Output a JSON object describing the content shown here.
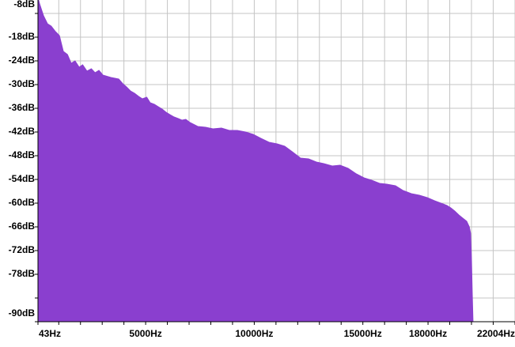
{
  "chart_data": {
    "type": "area",
    "color": "#8a3fcf",
    "grid": true,
    "xlim": [
      43,
      22004
    ],
    "ylim": [
      -90,
      -8
    ],
    "xticks": [
      {
        "value": 43,
        "label": "43Hz"
      },
      {
        "value": 1000,
        "label": null
      },
      {
        "value": 2000,
        "label": null
      },
      {
        "value": 3000,
        "label": null
      },
      {
        "value": 4000,
        "label": null
      },
      {
        "value": 5000,
        "label": "5000Hz"
      },
      {
        "value": 6000,
        "label": null
      },
      {
        "value": 7000,
        "label": null
      },
      {
        "value": 8000,
        "label": null
      },
      {
        "value": 9000,
        "label": null
      },
      {
        "value": 10000,
        "label": "10000Hz"
      },
      {
        "value": 11000,
        "label": null
      },
      {
        "value": 12000,
        "label": null
      },
      {
        "value": 13000,
        "label": null
      },
      {
        "value": 14000,
        "label": null
      },
      {
        "value": 15000,
        "label": "15000Hz"
      },
      {
        "value": 16000,
        "label": null
      },
      {
        "value": 17000,
        "label": null
      },
      {
        "value": 18000,
        "label": "18000Hz"
      },
      {
        "value": 19000,
        "label": null
      },
      {
        "value": 20000,
        "label": null
      },
      {
        "value": 21000,
        "label": null
      },
      {
        "value": 22004,
        "label": "22004Hz"
      }
    ],
    "yticks": [
      {
        "value": -8,
        "label": "-8dB"
      },
      {
        "value": -12,
        "label": null
      },
      {
        "value": -18,
        "label": "-18dB"
      },
      {
        "value": -24,
        "label": "-24dB"
      },
      {
        "value": -30,
        "label": "-30dB"
      },
      {
        "value": -36,
        "label": "-36dB"
      },
      {
        "value": -42,
        "label": "-42dB"
      },
      {
        "value": -48,
        "label": "-48dB"
      },
      {
        "value": -54,
        "label": "-54dB"
      },
      {
        "value": -60,
        "label": "-60dB"
      },
      {
        "value": -66,
        "label": "-66dB"
      },
      {
        "value": -72,
        "label": "-72dB"
      },
      {
        "value": -78,
        "label": "-78dB"
      },
      {
        "value": -84,
        "label": null
      },
      {
        "value": -90,
        "label": "-90dB"
      }
    ],
    "x": [
      43,
      120,
      300,
      480,
      650,
      850,
      1030,
      1210,
      1400,
      1570,
      1750,
      1940,
      2100,
      2300,
      2500,
      2670,
      2850,
      3030,
      3400,
      3760,
      3950,
      4120,
      4300,
      4490,
      4680,
      4850,
      5050,
      5210,
      5400,
      5580,
      5760,
      5940,
      6120,
      6310,
      6500,
      6670,
      6850,
      7040,
      7400,
      7760,
      8100,
      8490,
      8850,
      9220,
      9600,
      9950,
      10300,
      10680,
      11050,
      11400,
      11750,
      12130,
      12500,
      12860,
      13200,
      13590,
      13950,
      14320,
      14700,
      15050,
      15400,
      15770,
      16100,
      16500,
      16850,
      17230,
      17600,
      17960,
      18300,
      18690,
      18870,
      19050,
      19230,
      19420,
      19600,
      19780,
      19900,
      19960,
      20000,
      20035,
      20071
    ],
    "values": [
      -8,
      -9.6,
      -12.6,
      -14.6,
      -15.2,
      -16.6,
      -17.6,
      -21.6,
      -22.4,
      -24.6,
      -24,
      -25.6,
      -25,
      -26.6,
      -26,
      -27,
      -26.4,
      -27.6,
      -28.2,
      -28.6,
      -29.8,
      -30.6,
      -31.6,
      -32.2,
      -33,
      -33.6,
      -33.2,
      -34.6,
      -35,
      -35.6,
      -36.2,
      -37,
      -37.6,
      -38.2,
      -38.6,
      -39,
      -38.8,
      -39.6,
      -40.6,
      -40.8,
      -41.2,
      -41,
      -41.6,
      -41.6,
      -42,
      -42.6,
      -43.6,
      -44.6,
      -45,
      -45.6,
      -47,
      -48.6,
      -48.8,
      -49.6,
      -50,
      -50.6,
      -50.4,
      -51.2,
      -52.6,
      -53.6,
      -54.2,
      -55,
      -55.2,
      -55.6,
      -56.8,
      -57.6,
      -58,
      -58.6,
      -59.4,
      -60.2,
      -60.6,
      -61.2,
      -62,
      -63,
      -63.8,
      -64.6,
      -66,
      -67.6,
      -74,
      -82.6,
      -90
    ]
  }
}
